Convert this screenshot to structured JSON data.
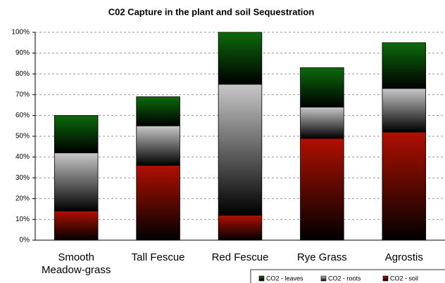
{
  "chart_data": {
    "type": "stacked_bar",
    "title": "C02 Capture in the plant and soil Sequestration",
    "categories": [
      "Smooth Meadow-grass",
      "Tall Fescue",
      "Red Fescue",
      "Rye Grass",
      "Agrostis"
    ],
    "series": [
      {
        "name": "CO2 - soil",
        "color": "#b01000",
        "values": [
          14,
          36,
          12,
          49,
          52
        ]
      },
      {
        "name": "CO2 - roots",
        "color": "#c8c8c8",
        "values": [
          28,
          19,
          63,
          15,
          21
        ]
      },
      {
        "name": "CO2 - leaves",
        "color": "#0c6a0c",
        "values": [
          18,
          14,
          25,
          19,
          22
        ]
      }
    ],
    "legend_order": [
      "CO2 - leaves",
      "CO2 - roots",
      "CO2 - soil"
    ],
    "ylim": [
      0,
      100
    ],
    "yticks": [
      {
        "value": 0,
        "label": "0%"
      },
      {
        "value": 10,
        "label": "10%"
      },
      {
        "value": 20,
        "label": "20%"
      },
      {
        "value": 30,
        "label": "30%"
      },
      {
        "value": 40,
        "label": "40%"
      },
      {
        "value": 50,
        "label": "50%"
      },
      {
        "value": 60,
        "label": "60%"
      },
      {
        "value": 70,
        "label": "70%"
      },
      {
        "value": 80,
        "label": "80%"
      },
      {
        "value": 90,
        "label": "90%"
      },
      {
        "value": 100,
        "label": "100%"
      }
    ],
    "grid": true,
    "legend": "bottom-right"
  }
}
